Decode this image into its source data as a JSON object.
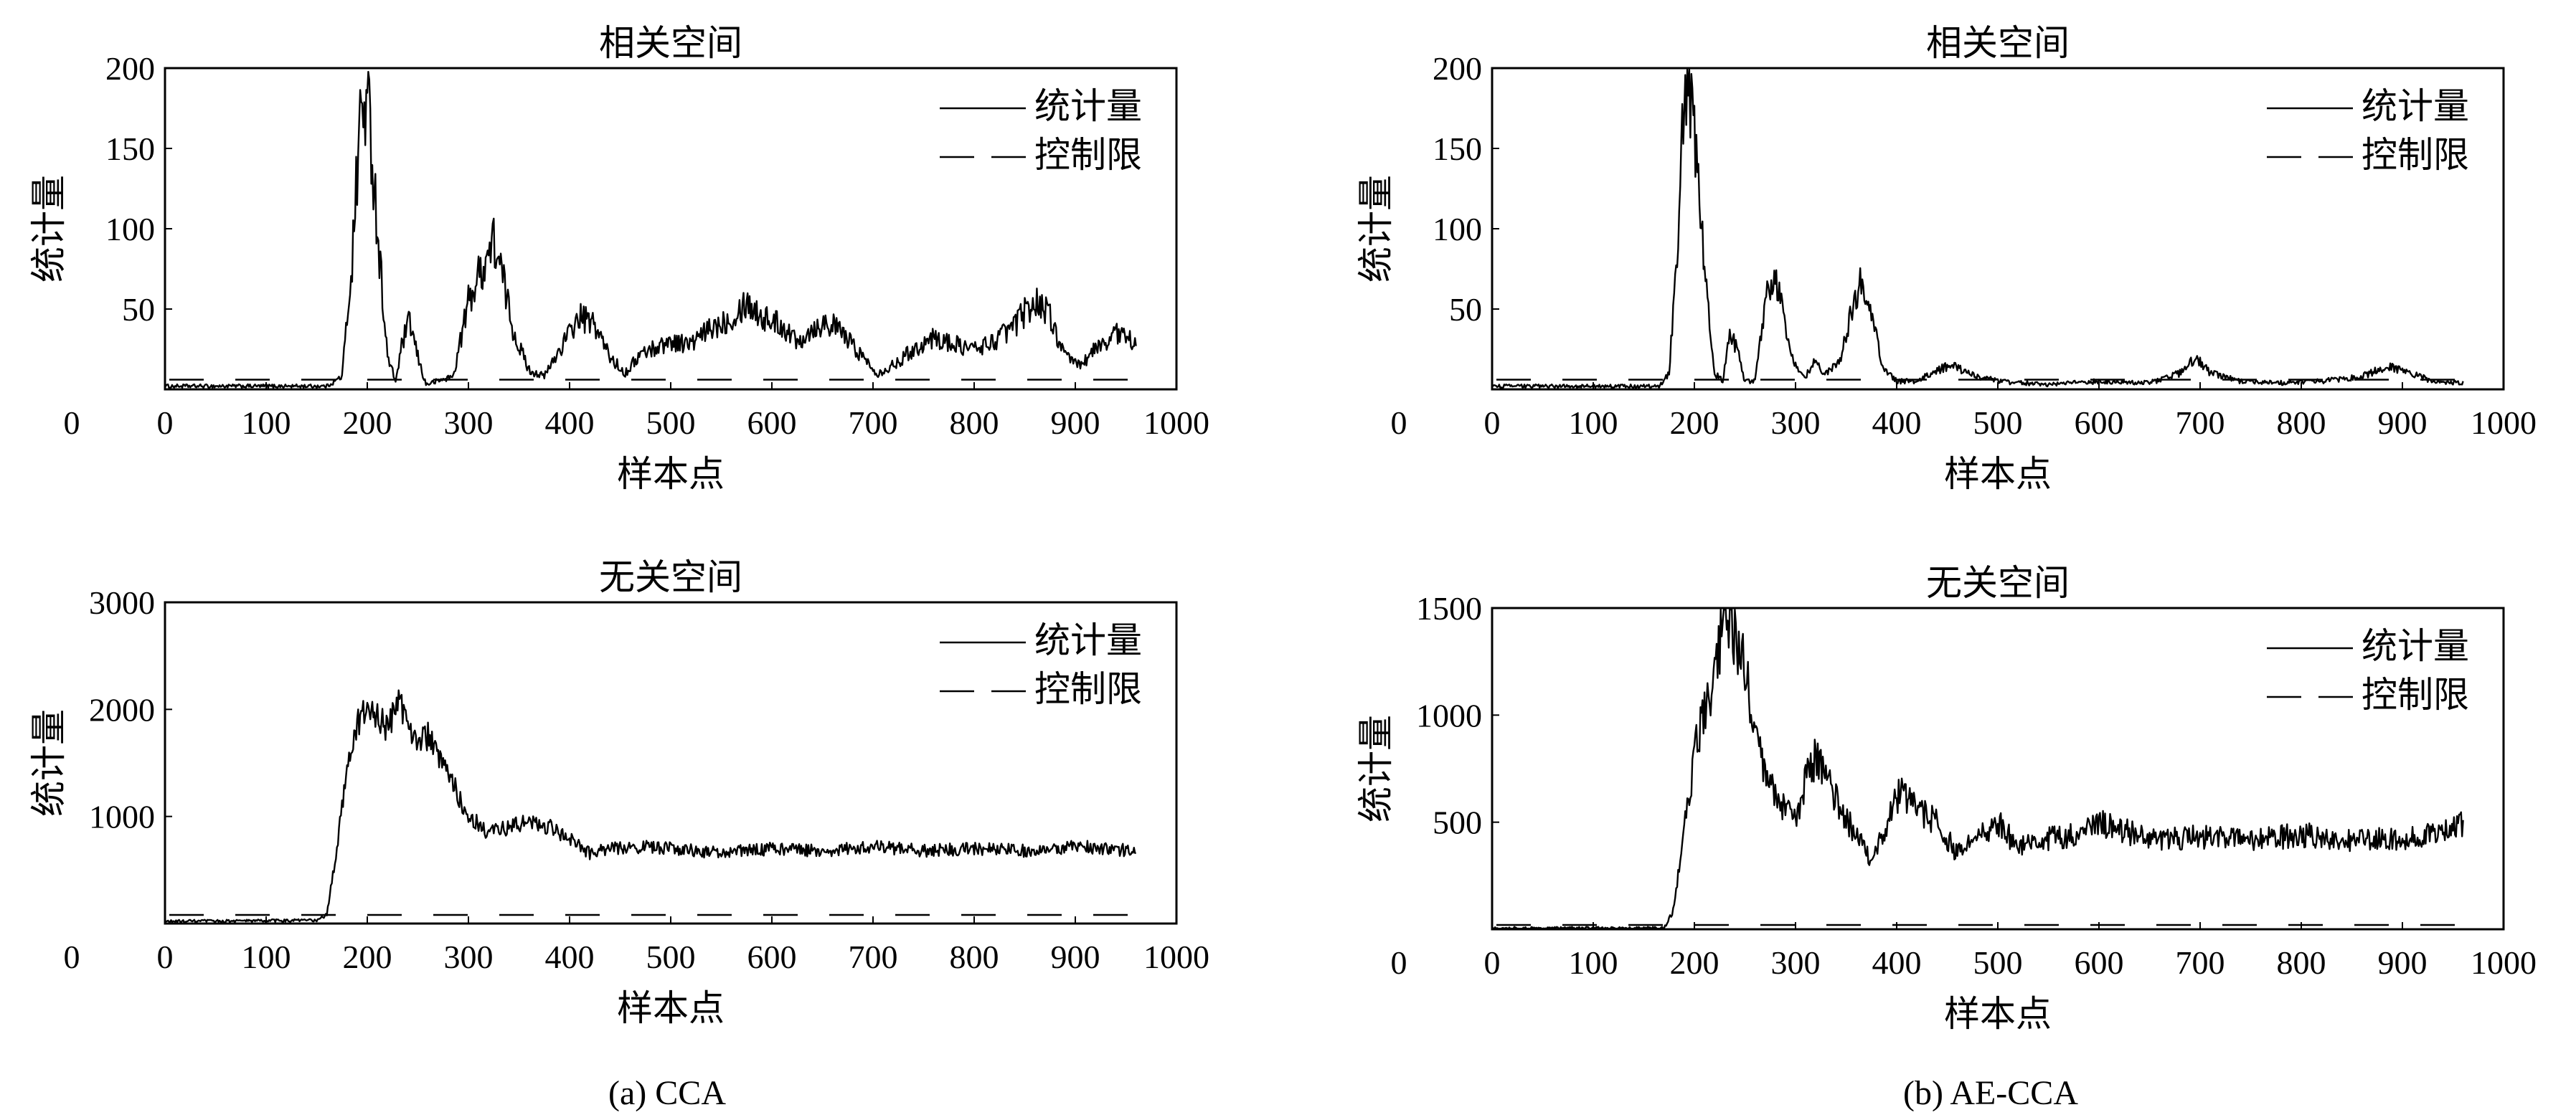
{
  "chart_data": [
    {
      "id": "a-top",
      "type": "line",
      "panel": "CCA",
      "title": "相关空间",
      "xlabel": "样本点",
      "ylabel": "统计量",
      "xlim": [
        0,
        1000
      ],
      "ylim": [
        0,
        200
      ],
      "xticks": [
        0,
        100,
        200,
        300,
        400,
        500,
        600,
        700,
        800,
        900,
        1000
      ],
      "yticks": [
        50,
        100,
        150,
        200
      ],
      "yzero_label": "0",
      "legend_position": "top-right",
      "legend": [
        "统计量",
        "控制限"
      ],
      "control_limit": 6,
      "n": 960,
      "noise": 0.18,
      "series_profile": [
        [
          0,
          2
        ],
        [
          160,
          2
        ],
        [
          175,
          8
        ],
        [
          185,
          80
        ],
        [
          193,
          170
        ],
        [
          198,
          178
        ],
        [
          203,
          165
        ],
        [
          210,
          100
        ],
        [
          220,
          20
        ],
        [
          228,
          5
        ],
        [
          235,
          30
        ],
        [
          242,
          42
        ],
        [
          250,
          20
        ],
        [
          258,
          3
        ],
        [
          285,
          8
        ],
        [
          300,
          55
        ],
        [
          315,
          78
        ],
        [
          325,
          92
        ],
        [
          333,
          72
        ],
        [
          345,
          35
        ],
        [
          360,
          12
        ],
        [
          375,
          8
        ],
        [
          395,
          30
        ],
        [
          410,
          45
        ],
        [
          425,
          40
        ],
        [
          440,
          20
        ],
        [
          455,
          10
        ],
        [
          470,
          22
        ],
        [
          500,
          30
        ],
        [
          520,
          28
        ],
        [
          540,
          38
        ],
        [
          560,
          45
        ],
        [
          575,
          55
        ],
        [
          590,
          45
        ],
        [
          610,
          40
        ],
        [
          625,
          30
        ],
        [
          640,
          38
        ],
        [
          655,
          42
        ],
        [
          670,
          35
        ],
        [
          690,
          20
        ],
        [
          705,
          10
        ],
        [
          720,
          15
        ],
        [
          740,
          25
        ],
        [
          760,
          32
        ],
        [
          780,
          28
        ],
        [
          800,
          25
        ],
        [
          820,
          30
        ],
        [
          840,
          40
        ],
        [
          855,
          52
        ],
        [
          865,
          55
        ],
        [
          875,
          45
        ],
        [
          890,
          20
        ],
        [
          905,
          15
        ],
        [
          920,
          25
        ],
        [
          940,
          35
        ],
        [
          960,
          30
        ]
      ]
    },
    {
      "id": "a-bottom",
      "type": "line",
      "panel": "CCA",
      "title": "无关空间",
      "xlabel": "样本点",
      "ylabel": "统计量",
      "xlim": [
        0,
        1000
      ],
      "ylim": [
        0,
        3000
      ],
      "xticks": [
        0,
        100,
        200,
        300,
        400,
        500,
        600,
        700,
        800,
        900,
        1000
      ],
      "yticks": [
        1000,
        2000,
        3000
      ],
      "yzero_label": "0",
      "legend_position": "top-right",
      "legend": [
        "统计量",
        "控制限"
      ],
      "control_limit": 80,
      "n": 960,
      "noise": 0.07,
      "series_profile": [
        [
          0,
          20
        ],
        [
          150,
          30
        ],
        [
          160,
          80
        ],
        [
          170,
          700
        ],
        [
          180,
          1500
        ],
        [
          190,
          1850
        ],
        [
          200,
          2000
        ],
        [
          210,
          1950
        ],
        [
          220,
          1800
        ],
        [
          230,
          2100
        ],
        [
          240,
          1900
        ],
        [
          250,
          1700
        ],
        [
          260,
          1750
        ],
        [
          270,
          1550
        ],
        [
          285,
          1300
        ],
        [
          300,
          1000
        ],
        [
          320,
          850
        ],
        [
          340,
          900
        ],
        [
          360,
          950
        ],
        [
          380,
          900
        ],
        [
          400,
          800
        ],
        [
          420,
          650
        ],
        [
          440,
          700
        ],
        [
          460,
          720
        ],
        [
          500,
          700
        ],
        [
          550,
          660
        ],
        [
          600,
          700
        ],
        [
          650,
          680
        ],
        [
          700,
          720
        ],
        [
          750,
          680
        ],
        [
          800,
          700
        ],
        [
          850,
          680
        ],
        [
          900,
          720
        ],
        [
          960,
          680
        ]
      ]
    },
    {
      "id": "b-top",
      "type": "line",
      "panel": "AE-CCA",
      "title": "相关空间",
      "xlabel": "样本点",
      "ylabel": "统计量",
      "xlim": [
        0,
        1000
      ],
      "ylim": [
        0,
        200
      ],
      "xticks": [
        0,
        100,
        200,
        300,
        400,
        500,
        600,
        700,
        800,
        900,
        1000
      ],
      "yticks": [
        50,
        100,
        150,
        200
      ],
      "yzero_label": "0",
      "legend_position": "top-right",
      "legend": [
        "统计量",
        "控制限"
      ],
      "control_limit": 6,
      "n": 960,
      "noise": 0.15,
      "series_profile": [
        [
          0,
          2
        ],
        [
          165,
          2
        ],
        [
          175,
          10
        ],
        [
          183,
          90
        ],
        [
          190,
          180
        ],
        [
          195,
          183
        ],
        [
          200,
          160
        ],
        [
          210,
          80
        ],
        [
          220,
          10
        ],
        [
          228,
          5
        ],
        [
          235,
          35
        ],
        [
          242,
          25
        ],
        [
          250,
          5
        ],
        [
          260,
          5
        ],
        [
          270,
          55
        ],
        [
          278,
          72
        ],
        [
          285,
          60
        ],
        [
          295,
          20
        ],
        [
          310,
          8
        ],
        [
          320,
          18
        ],
        [
          328,
          8
        ],
        [
          345,
          20
        ],
        [
          358,
          55
        ],
        [
          365,
          67
        ],
        [
          372,
          60
        ],
        [
          385,
          15
        ],
        [
          400,
          5
        ],
        [
          420,
          5
        ],
        [
          440,
          12
        ],
        [
          455,
          15
        ],
        [
          470,
          10
        ],
        [
          500,
          5
        ],
        [
          550,
          3
        ],
        [
          600,
          5
        ],
        [
          650,
          4
        ],
        [
          680,
          10
        ],
        [
          695,
          20
        ],
        [
          710,
          10
        ],
        [
          740,
          5
        ],
        [
          780,
          4
        ],
        [
          820,
          5
        ],
        [
          860,
          8
        ],
        [
          885,
          14
        ],
        [
          900,
          12
        ],
        [
          930,
          5
        ],
        [
          960,
          4
        ]
      ]
    },
    {
      "id": "b-bottom",
      "type": "line",
      "panel": "AE-CCA",
      "title": "无关空间",
      "xlabel": "样本点",
      "ylabel": "统计量",
      "xlim": [
        0,
        1000
      ],
      "ylim": [
        0,
        1500
      ],
      "xticks": [
        0,
        100,
        200,
        300,
        400,
        500,
        600,
        700,
        800,
        900,
        1000
      ],
      "yticks": [
        500,
        1000,
        1500
      ],
      "yzero_label": "0",
      "legend_position": "top-right",
      "legend": [
        "统计量",
        "控制限"
      ],
      "control_limit": 20,
      "n": 960,
      "noise": 0.12,
      "series_profile": [
        [
          0,
          5
        ],
        [
          170,
          5
        ],
        [
          180,
          100
        ],
        [
          190,
          500
        ],
        [
          200,
          800
        ],
        [
          210,
          1050
        ],
        [
          220,
          1200
        ],
        [
          230,
          1450
        ],
        [
          240,
          1400
        ],
        [
          250,
          1200
        ],
        [
          260,
          900
        ],
        [
          270,
          700
        ],
        [
          285,
          600
        ],
        [
          300,
          500
        ],
        [
          310,
          700
        ],
        [
          320,
          800
        ],
        [
          330,
          700
        ],
        [
          345,
          550
        ],
        [
          360,
          450
        ],
        [
          375,
          300
        ],
        [
          390,
          500
        ],
        [
          405,
          650
        ],
        [
          420,
          560
        ],
        [
          440,
          500
        ],
        [
          460,
          350
        ],
        [
          480,
          420
        ],
        [
          500,
          500
        ],
        [
          520,
          380
        ],
        [
          550,
          420
        ],
        [
          580,
          450
        ],
        [
          600,
          500
        ],
        [
          650,
          420
        ],
        [
          700,
          430
        ],
        [
          750,
          420
        ],
        [
          800,
          440
        ],
        [
          850,
          420
        ],
        [
          900,
          420
        ],
        [
          940,
          450
        ],
        [
          960,
          500
        ]
      ]
    }
  ],
  "captions": [
    "(a) CCA",
    "(b) AE-CCA"
  ]
}
